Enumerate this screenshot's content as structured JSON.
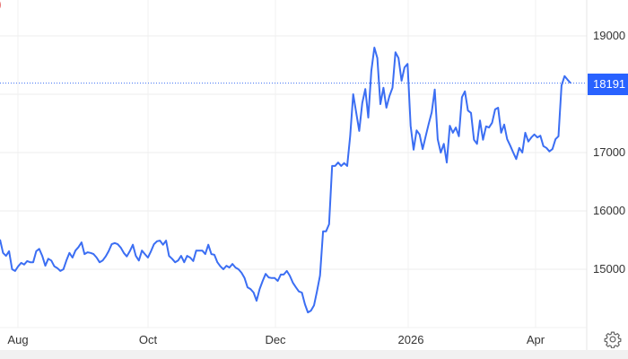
{
  "chart_data": {
    "type": "line",
    "title": "",
    "xlabel": "",
    "ylabel": "",
    "x_ticks": [
      "Aug",
      "Oct",
      "Dec",
      "2026",
      "Apr"
    ],
    "y_ticks": [
      15000,
      16000,
      17000,
      18000,
      19000
    ],
    "y_tick_labels": [
      "15000",
      "16000",
      "17000",
      "19000"
    ],
    "ylim": [
      14150,
      19600
    ],
    "y_axis_side": "right",
    "grid": true,
    "last_value": 18191,
    "last_value_label": "18191",
    "series": [
      {
        "color": "#3b6ef3",
        "values": [
          15510,
          15280,
          15230,
          15310,
          15000,
          14970,
          15050,
          15110,
          15080,
          15140,
          15120,
          15120,
          15310,
          15350,
          15230,
          15060,
          15180,
          15150,
          15050,
          15020,
          14970,
          15000,
          15150,
          15280,
          15200,
          15320,
          15380,
          15460,
          15260,
          15290,
          15280,
          15260,
          15200,
          15120,
          15150,
          15220,
          15310,
          15430,
          15450,
          15430,
          15370,
          15280,
          15220,
          15310,
          15420,
          15230,
          15150,
          15320,
          15260,
          15200,
          15310,
          15430,
          15480,
          15490,
          15420,
          15490,
          15230,
          15180,
          15120,
          15150,
          15230,
          15120,
          15230,
          15200,
          15140,
          15320,
          15320,
          15320,
          15260,
          15420,
          15260,
          15250,
          15120,
          15050,
          15000,
          15060,
          15030,
          15090,
          15030,
          15000,
          14940,
          14850,
          14690,
          14660,
          14600,
          14460,
          14660,
          14800,
          14920,
          14860,
          14850,
          14850,
          14800,
          14910,
          14910,
          14970,
          14890,
          14770,
          14690,
          14620,
          14600,
          14400,
          14260,
          14290,
          14380,
          14620,
          14890,
          15650,
          15650,
          15770,
          16770,
          16770,
          16830,
          16770,
          16820,
          16770,
          17280,
          18000,
          17680,
          17370,
          17850,
          18090,
          17600,
          18400,
          18800,
          18620,
          17830,
          18110,
          17770,
          17970,
          18110,
          18720,
          18620,
          18230,
          18460,
          18520,
          17460,
          17050,
          17380,
          17310,
          17060,
          17280,
          17490,
          17690,
          18080,
          17230,
          17000,
          17150,
          16830,
          17460,
          17340,
          17430,
          17280,
          17950,
          18050,
          17720,
          17680,
          17220,
          17150,
          17550,
          17220,
          17450,
          17430,
          17510,
          17740,
          17770,
          17340,
          17480,
          17230,
          17120,
          17000,
          16890,
          17080,
          17000,
          17340,
          17190,
          17260,
          17310,
          17260,
          17290,
          17110,
          17080,
          17020,
          17060,
          17230,
          17280,
          18150,
          18310,
          18250,
          18191
        ]
      }
    ]
  },
  "ui": {
    "corner_fragment": ")",
    "corner_color": "#e05050",
    "accent": "#2962ff",
    "settings_icon": "gear-icon"
  }
}
